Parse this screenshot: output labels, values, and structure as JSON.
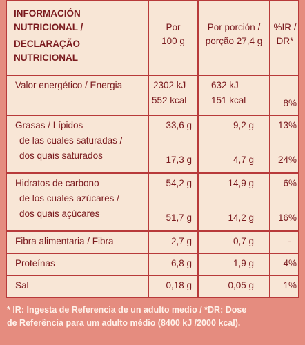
{
  "header": {
    "title_lines": [
      "INFORMACIÓN",
      "NUTRICIONAL /",
      "DECLARAÇÃO",
      "NUTRICIONAL"
    ],
    "col_per100": [
      "Por",
      "100 g"
    ],
    "col_portion": [
      "Por porción /",
      "porção 27,4 g"
    ],
    "col_ir": [
      "%IR /",
      "DR*"
    ]
  },
  "rows": {
    "energy": {
      "label": "Valor energético / Energia",
      "per100_kj": "2302 kJ",
      "per100_kcal": "552 kcal",
      "portion_kj": "632 kJ",
      "portion_kcal": "151 kcal",
      "ir": "8%"
    },
    "fat": {
      "label": "Grasas / Lípidos",
      "per100": "33,6 g",
      "portion": "9,2 g",
      "ir": "13%"
    },
    "sat": {
      "label_1": "de las cuales saturadas /",
      "label_2": "dos quais saturados",
      "per100": "17,3 g",
      "portion": "4,7 g",
      "ir": "24%"
    },
    "carb": {
      "label": "Hidratos de carbono",
      "per100": "54,2 g",
      "portion": "14,9 g",
      "ir": "6%"
    },
    "sugar": {
      "label_1": "de los cuales azúcares /",
      "label_2": "dos quais açúcares",
      "per100": "51,7 g",
      "portion": "14,2 g",
      "ir": "16%"
    },
    "fibre": {
      "label": "Fibra alimentaria / Fibra",
      "per100": "2,7 g",
      "portion": "0,7 g",
      "ir": "-"
    },
    "protein": {
      "label": "Proteínas",
      "per100": "6,8 g",
      "portion": "1,9 g",
      "ir": "4%"
    },
    "salt": {
      "label": "Sal",
      "per100": "0,18 g",
      "portion": "0,05 g",
      "ir": "1%"
    }
  },
  "footer": {
    "line1": "* IR: Ingesta de Referencia de un adulto medio / *DR: Dose",
    "line2": "de Referência para um adulto médio (8400 kJ /2000 kcal)."
  }
}
